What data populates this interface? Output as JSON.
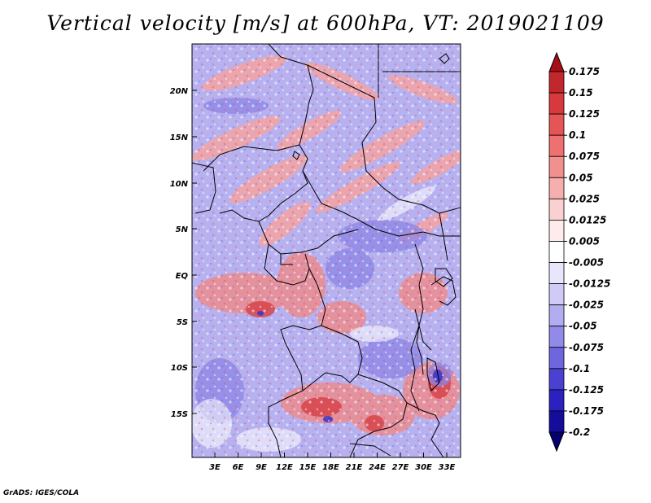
{
  "title": "Vertical velocity [m/s] at 600hPa, VT: 2019021109",
  "credit": "GrADS: IGES/COLA",
  "map": {
    "lat_labels": [
      "20N",
      "15N",
      "10N",
      "5N",
      "EQ",
      "5S",
      "10S",
      "15S"
    ],
    "lon_labels": [
      "3E",
      "6E",
      "9E",
      "12E",
      "15E",
      "18E",
      "21E",
      "24E",
      "27E",
      "30E",
      "33E"
    ]
  },
  "colorbar": {
    "labels": [
      "0.175",
      "0.15",
      "0.125",
      "0.1",
      "0.075",
      "0.05",
      "0.025",
      "0.0125",
      "0.005",
      "-0.005",
      "-0.0125",
      "-0.025",
      "-0.05",
      "-0.075",
      "-0.1",
      "-0.125",
      "-0.175",
      "-0.2"
    ],
    "colors": [
      "#a50f15",
      "#c1272d",
      "#d7393d",
      "#e65555",
      "#ee7070",
      "#f28f8f",
      "#f7aeae",
      "#fbd0d0",
      "#feebeb",
      "#ffffff",
      "#e8e6fb",
      "#cfcaf6",
      "#b2acf0",
      "#918ae8",
      "#6e66de",
      "#4a40d2",
      "#2b20c0",
      "#140c9a",
      "#050070"
    ]
  }
}
